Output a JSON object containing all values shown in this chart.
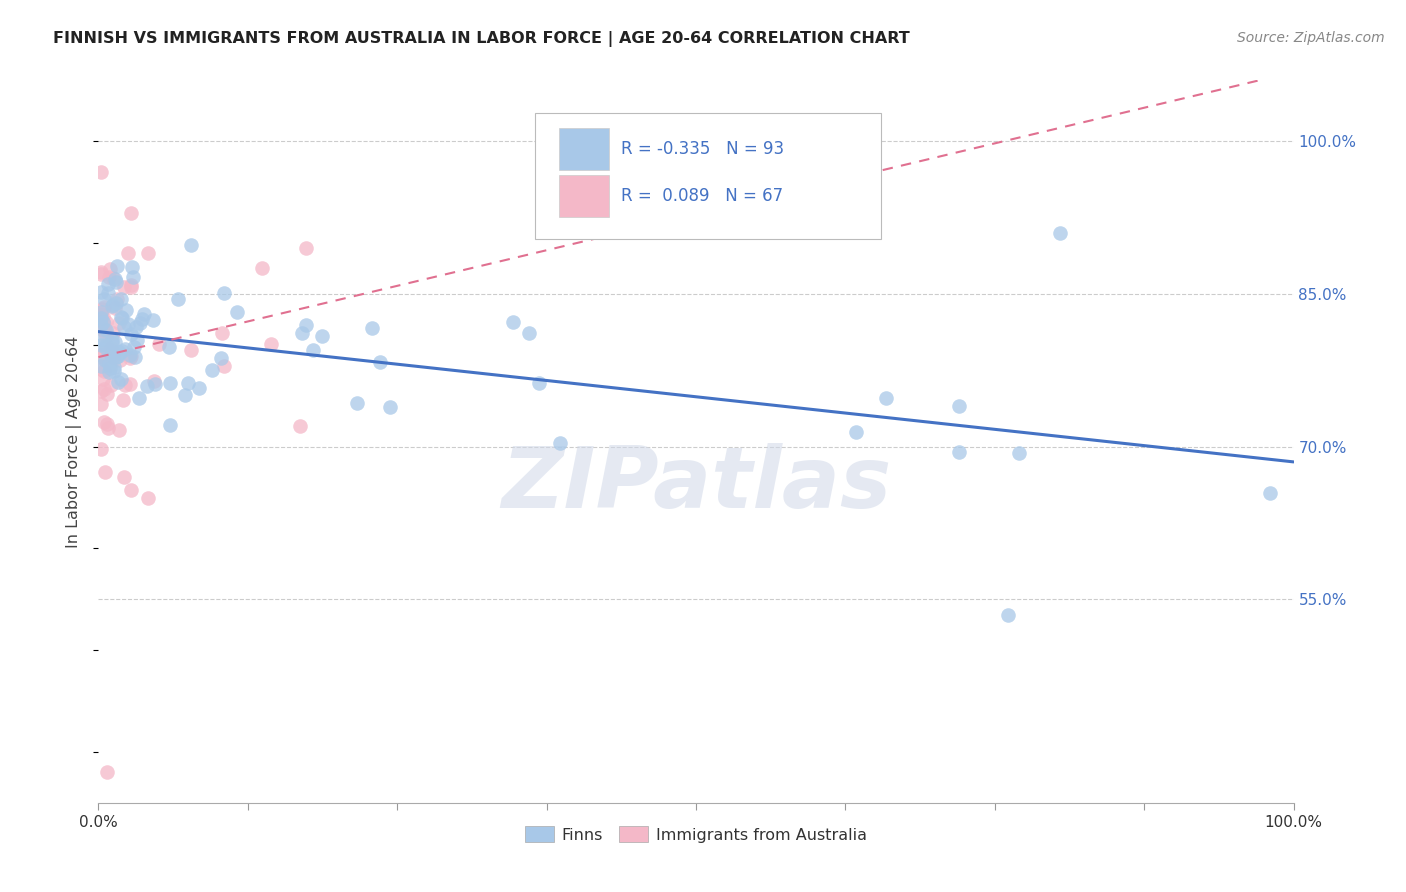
{
  "title": "FINNISH VS IMMIGRANTS FROM AUSTRALIA IN LABOR FORCE | AGE 20-64 CORRELATION CHART",
  "source": "Source: ZipAtlas.com",
  "ylabel": "In Labor Force | Age 20-64",
  "r_finns": -0.335,
  "n_finns": 93,
  "r_immigrants": 0.089,
  "n_immigrants": 67,
  "color_finns": "#a8c8e8",
  "color_immigrants": "#f4b8c8",
  "trendline_finns": "#4472c4",
  "trendline_immigrants": "#e07090",
  "background": "#ffffff",
  "grid_color": "#cccccc",
  "title_color": "#222222",
  "axis_label_color": "#444444",
  "right_axis_color": "#4472c4",
  "xlim": [
    0.0,
    1.0
  ],
  "ylim": [
    0.35,
    1.06
  ],
  "ytick_positions": [
    0.55,
    0.7,
    0.85,
    1.0
  ],
  "ytick_labels": [
    "55.0%",
    "70.0%",
    "85.0%",
    "100.0%"
  ],
  "finns_slope": -0.128,
  "finns_intercept": 0.813,
  "imm_slope": 0.28,
  "imm_intercept": 0.788
}
